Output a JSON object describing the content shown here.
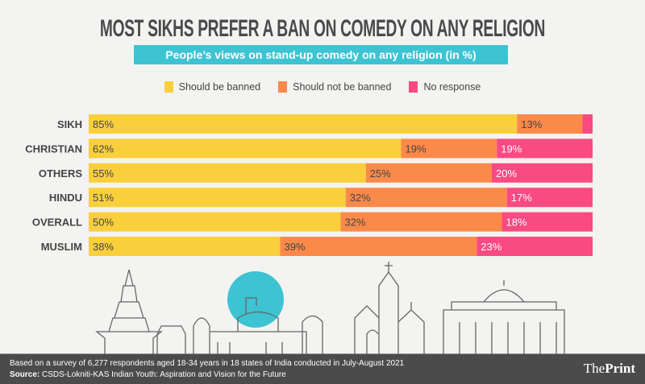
{
  "chart_data": {
    "type": "bar",
    "orientation": "horizontal",
    "stacked": true,
    "title": "MOST SIKHS PREFER A BAN ON COMEDY ON ANY RELIGION",
    "subtitle": "People’s views on stand-up comedy on any religion (in %)",
    "categories": [
      "SIKH",
      "CHRISTIAN",
      "OTHERS",
      "HINDU",
      "OVERALL",
      "MUSLIM"
    ],
    "series": [
      {
        "name": "Should be banned",
        "color": "#f9cf3c",
        "values": [
          85,
          62,
          55,
          51,
          50,
          38
        ],
        "labels": [
          "85%",
          "62%",
          "55%",
          "51%",
          "50%",
          "38%"
        ]
      },
      {
        "name": "Should not be banned",
        "color": "#fb8a4a",
        "values": [
          13,
          19,
          25,
          32,
          32,
          39
        ],
        "labels": [
          "13%",
          "19%",
          "25%",
          "32%",
          "32%",
          "39%"
        ]
      },
      {
        "name": "No response",
        "color": "#f94a83",
        "values": [
          2,
          19,
          20,
          17,
          18,
          23
        ],
        "labels": [
          "",
          "19%",
          "20%",
          "17%",
          "18%",
          "23%"
        ]
      }
    ],
    "xlim": [
      0,
      100
    ],
    "legend_position": "top-center",
    "grid": false
  },
  "footer": {
    "note": "Based on a survey of 6,277 respondents aged 18-34 years in 18 states of India conducted in July-August 2021",
    "source_label": "Source:",
    "source_text": " CSDS-Lokniti-KAS Indian Youth: Aspiration and Vision for the Future",
    "logo_the": "The",
    "logo_print": "Print"
  }
}
